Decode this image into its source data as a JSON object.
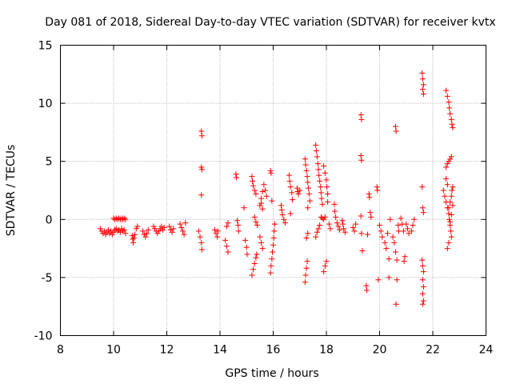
{
  "chart_data": {
    "type": "scatter",
    "title": "Day 081 of 2018, Sidereal Day-to-day VTEC variation (SDTVAR) for receiver kvtx",
    "xlabel": "GPS time / hours",
    "ylabel": "SDTVAR / TECUs",
    "xlim": [
      8,
      24
    ],
    "ylim": [
      -10,
      15
    ],
    "xticks": [
      8,
      10,
      12,
      14,
      16,
      18,
      20,
      22,
      24
    ],
    "yticks": [
      -10,
      -5,
      0,
      5,
      10,
      15
    ],
    "grid": true,
    "marker": "+",
    "colors": {
      "points": "#ff0000",
      "grid": "#a0a0a0",
      "axes": "#000000"
    },
    "series": [
      {
        "name": "SDTVAR",
        "points": [
          [
            9.5,
            -0.8
          ],
          [
            9.55,
            -1.0
          ],
          [
            9.6,
            -1.2
          ],
          [
            9.65,
            -1.0
          ],
          [
            9.7,
            -1.3
          ],
          [
            9.75,
            -1.1
          ],
          [
            9.8,
            -0.9
          ],
          [
            9.85,
            -1.2
          ],
          [
            9.9,
            -1.0
          ],
          [
            9.95,
            -1.3
          ],
          [
            10.0,
            -1.1
          ],
          [
            10.05,
            -0.9
          ],
          [
            10.0,
            0.1
          ],
          [
            10.05,
            0.0
          ],
          [
            10.1,
            0.1
          ],
          [
            10.15,
            0.0
          ],
          [
            10.2,
            0.1
          ],
          [
            10.25,
            0.0
          ],
          [
            10.3,
            0.1
          ],
          [
            10.35,
            0.0
          ],
          [
            10.4,
            0.1
          ],
          [
            10.45,
            0.0
          ],
          [
            10.1,
            -0.8
          ],
          [
            10.15,
            -1.0
          ],
          [
            10.2,
            -0.9
          ],
          [
            10.25,
            -1.1
          ],
          [
            10.3,
            -0.8
          ],
          [
            10.35,
            -1.0
          ],
          [
            10.4,
            -0.9
          ],
          [
            10.45,
            -1.2
          ],
          [
            10.7,
            -1.4
          ],
          [
            10.72,
            -1.7
          ],
          [
            10.74,
            -2.0
          ],
          [
            10.76,
            -1.6
          ],
          [
            10.8,
            -1.3
          ],
          [
            10.85,
            -0.8
          ],
          [
            10.9,
            -0.6
          ],
          [
            11.1,
            -1.0
          ],
          [
            11.15,
            -1.3
          ],
          [
            11.2,
            -1.5
          ],
          [
            11.25,
            -1.2
          ],
          [
            11.3,
            -0.9
          ],
          [
            11.5,
            -0.6
          ],
          [
            11.55,
            -0.8
          ],
          [
            11.6,
            -1.0
          ],
          [
            11.65,
            -1.2
          ],
          [
            11.7,
            -1.0
          ],
          [
            11.75,
            -0.8
          ],
          [
            11.8,
            -0.6
          ],
          [
            11.85,
            -0.9
          ],
          [
            11.9,
            -0.7
          ],
          [
            12.1,
            -0.6
          ],
          [
            12.15,
            -0.9
          ],
          [
            12.2,
            -1.1
          ],
          [
            12.25,
            -0.8
          ],
          [
            12.5,
            -0.4
          ],
          [
            12.55,
            -0.7
          ],
          [
            12.6,
            -1.0
          ],
          [
            12.65,
            -1.3
          ],
          [
            12.7,
            -0.3
          ],
          [
            13.2,
            -1.0
          ],
          [
            13.25,
            -1.5
          ],
          [
            13.3,
            -2.0
          ],
          [
            13.32,
            -2.6
          ],
          [
            13.3,
            7.6
          ],
          [
            13.32,
            7.2
          ],
          [
            13.3,
            4.5
          ],
          [
            13.32,
            4.3
          ],
          [
            13.3,
            2.1
          ],
          [
            13.8,
            -0.9
          ],
          [
            13.85,
            -1.2
          ],
          [
            13.9,
            -1.5
          ],
          [
            13.92,
            -1.0
          ],
          [
            14.2,
            -1.8
          ],
          [
            14.25,
            -2.3
          ],
          [
            14.3,
            -2.8
          ],
          [
            14.25,
            -0.6
          ],
          [
            14.3,
            -0.3
          ],
          [
            14.6,
            3.9
          ],
          [
            14.62,
            3.6
          ],
          [
            14.65,
            -0.1
          ],
          [
            14.68,
            -0.5
          ],
          [
            14.7,
            -1.0
          ],
          [
            14.9,
            1.0
          ],
          [
            14.95,
            -1.8
          ],
          [
            15.0,
            -2.4
          ],
          [
            15.02,
            -3.0
          ],
          [
            15.2,
            3.7
          ],
          [
            15.22,
            3.3
          ],
          [
            15.25,
            2.9
          ],
          [
            15.3,
            2.5
          ],
          [
            15.35,
            2.2
          ],
          [
            15.2,
            -4.8
          ],
          [
            15.25,
            -4.3
          ],
          [
            15.3,
            -3.8
          ],
          [
            15.35,
            -3.3
          ],
          [
            15.38,
            -3.0
          ],
          [
            15.3,
            0.2
          ],
          [
            15.35,
            -0.2
          ],
          [
            15.4,
            -0.5
          ],
          [
            15.5,
            1.2
          ],
          [
            15.55,
            1.8
          ],
          [
            15.6,
            2.4
          ],
          [
            15.65,
            3.0
          ],
          [
            15.7,
            2.5
          ],
          [
            15.75,
            2.0
          ],
          [
            15.55,
            1.4
          ],
          [
            15.6,
            0.9
          ],
          [
            15.5,
            -1.5
          ],
          [
            15.55,
            -2.0
          ],
          [
            15.6,
            -2.5
          ],
          [
            15.9,
            4.2
          ],
          [
            15.92,
            4.0
          ],
          [
            15.95,
            1.6
          ],
          [
            15.9,
            -4.6
          ],
          [
            15.92,
            -4.0
          ],
          [
            15.95,
            -3.4
          ],
          [
            15.97,
            -2.8
          ],
          [
            16.0,
            -2.2
          ],
          [
            16.02,
            -1.6
          ],
          [
            16.04,
            -1.0
          ],
          [
            16.06,
            -0.4
          ],
          [
            16.3,
            1.2
          ],
          [
            16.32,
            0.8
          ],
          [
            16.35,
            0.4
          ],
          [
            16.4,
            0.0
          ],
          [
            16.45,
            -0.3
          ],
          [
            16.6,
            3.8
          ],
          [
            16.62,
            3.3
          ],
          [
            16.65,
            2.8
          ],
          [
            16.7,
            2.3
          ],
          [
            16.72,
            1.7
          ],
          [
            16.65,
            0.5
          ],
          [
            16.9,
            2.7
          ],
          [
            16.92,
            2.4
          ],
          [
            16.95,
            2.2
          ],
          [
            17.0,
            2.5
          ],
          [
            17.2,
            5.2
          ],
          [
            17.22,
            4.7
          ],
          [
            17.25,
            4.2
          ],
          [
            17.28,
            3.7
          ],
          [
            17.3,
            3.2
          ],
          [
            17.32,
            2.7
          ],
          [
            17.35,
            2.2
          ],
          [
            17.38,
            1.6
          ],
          [
            17.2,
            -5.4
          ],
          [
            17.22,
            -4.8
          ],
          [
            17.25,
            -4.2
          ],
          [
            17.28,
            -3.6
          ],
          [
            17.25,
            -1.6
          ],
          [
            17.3,
            -1.2
          ],
          [
            17.3,
            1.0
          ],
          [
            17.6,
            6.4
          ],
          [
            17.62,
            5.9
          ],
          [
            17.65,
            5.4
          ],
          [
            17.68,
            4.8
          ],
          [
            17.7,
            4.3
          ],
          [
            17.72,
            3.8
          ],
          [
            17.75,
            3.3
          ],
          [
            17.78,
            2.8
          ],
          [
            17.8,
            2.3
          ],
          [
            17.82,
            1.8
          ],
          [
            17.85,
            1.3
          ],
          [
            17.8,
            0.2
          ],
          [
            17.85,
            0.1
          ],
          [
            17.9,
            0.0
          ],
          [
            17.95,
            0.2
          ],
          [
            17.6,
            -1.5
          ],
          [
            17.65,
            -1.1
          ],
          [
            17.7,
            -0.8
          ],
          [
            17.75,
            -0.5
          ],
          [
            17.9,
            -4.5
          ],
          [
            17.95,
            -4.0
          ],
          [
            18.0,
            -3.6
          ],
          [
            17.9,
            4.6
          ],
          [
            17.95,
            4.0
          ],
          [
            18.0,
            3.4
          ],
          [
            18.02,
            2.8
          ],
          [
            18.05,
            2.2
          ],
          [
            18.05,
            1.5
          ],
          [
            18.1,
            -0.4
          ],
          [
            18.15,
            -0.8
          ],
          [
            18.3,
            1.3
          ],
          [
            18.32,
            0.7
          ],
          [
            18.35,
            0.2
          ],
          [
            18.4,
            -0.3
          ],
          [
            18.45,
            -0.6
          ],
          [
            18.5,
            -0.9
          ],
          [
            18.6,
            -0.1
          ],
          [
            18.62,
            -0.4
          ],
          [
            18.65,
            -0.8
          ],
          [
            18.7,
            -1.1
          ],
          [
            19.0,
            -0.7
          ],
          [
            19.05,
            -1.0
          ],
          [
            19.1,
            -0.4
          ],
          [
            19.3,
            9.0
          ],
          [
            19.32,
            8.6
          ],
          [
            19.3,
            5.5
          ],
          [
            19.32,
            5.1
          ],
          [
            19.3,
            0.3
          ],
          [
            19.32,
            -1.2
          ],
          [
            19.35,
            -2.7
          ],
          [
            19.5,
            -5.7
          ],
          [
            19.52,
            -6.1
          ],
          [
            19.55,
            -1.3
          ],
          [
            19.6,
            2.2
          ],
          [
            19.62,
            1.9
          ],
          [
            19.65,
            0.6
          ],
          [
            19.68,
            0.2
          ],
          [
            19.9,
            2.8
          ],
          [
            19.92,
            2.5
          ],
          [
            19.95,
            -5.2
          ],
          [
            20.0,
            -0.5
          ],
          [
            20.05,
            -1.0
          ],
          [
            20.1,
            -1.5
          ],
          [
            20.2,
            -2.0
          ],
          [
            20.25,
            -2.5
          ],
          [
            20.3,
            -1.2
          ],
          [
            20.35,
            -3.4
          ],
          [
            20.35,
            -5.0
          ],
          [
            20.4,
            0.0
          ],
          [
            20.5,
            -1.5
          ],
          [
            20.55,
            -2.0
          ],
          [
            20.6,
            -2.8
          ],
          [
            20.65,
            -3.5
          ],
          [
            20.65,
            -5.2
          ],
          [
            20.6,
            8.0
          ],
          [
            20.62,
            7.6
          ],
          [
            20.62,
            -7.3
          ],
          [
            20.7,
            -0.5
          ],
          [
            20.72,
            -1.0
          ],
          [
            20.8,
            0.1
          ],
          [
            20.85,
            -0.4
          ],
          [
            20.9,
            -1.0
          ],
          [
            20.92,
            -3.6
          ],
          [
            20.95,
            -3.2
          ],
          [
            21.0,
            -0.4
          ],
          [
            21.05,
            -0.8
          ],
          [
            21.1,
            -1.2
          ],
          [
            21.2,
            -1.0
          ],
          [
            21.25,
            -0.5
          ],
          [
            21.3,
            0.0
          ],
          [
            21.6,
            12.6
          ],
          [
            21.62,
            12.1
          ],
          [
            21.65,
            11.6
          ],
          [
            21.62,
            11.2
          ],
          [
            21.65,
            10.8
          ],
          [
            21.6,
            2.8
          ],
          [
            21.62,
            1.0
          ],
          [
            21.65,
            0.6
          ],
          [
            21.6,
            -3.5
          ],
          [
            21.62,
            -4.0
          ],
          [
            21.65,
            -4.5
          ],
          [
            21.62,
            -5.2
          ],
          [
            21.65,
            -5.8
          ],
          [
            21.62,
            -6.4
          ],
          [
            21.65,
            -7.0
          ],
          [
            21.62,
            -7.3
          ],
          [
            22.5,
            11.1
          ],
          [
            22.55,
            10.6
          ],
          [
            22.6,
            10.1
          ],
          [
            22.62,
            9.6
          ],
          [
            22.65,
            9.1
          ],
          [
            22.7,
            8.6
          ],
          [
            22.72,
            8.2
          ],
          [
            22.75,
            7.9
          ],
          [
            22.5,
            4.5
          ],
          [
            22.55,
            4.8
          ],
          [
            22.6,
            5.0
          ],
          [
            22.65,
            5.2
          ],
          [
            22.7,
            5.4
          ],
          [
            22.5,
            3.5
          ],
          [
            22.55,
            3.0
          ],
          [
            22.4,
            2.5
          ],
          [
            22.45,
            2.0
          ],
          [
            22.5,
            1.5
          ],
          [
            22.55,
            1.0
          ],
          [
            22.6,
            0.5
          ],
          [
            22.62,
            0.0
          ],
          [
            22.65,
            -0.5
          ],
          [
            22.68,
            -1.0
          ],
          [
            22.7,
            -1.5
          ],
          [
            22.6,
            -2.0
          ],
          [
            22.55,
            -2.5
          ],
          [
            22.6,
            1.0
          ],
          [
            22.65,
            1.5
          ],
          [
            22.7,
            2.0
          ],
          [
            22.72,
            2.5
          ],
          [
            22.75,
            2.8
          ],
          [
            22.7,
            0.4
          ],
          [
            22.65,
            -0.2
          ],
          [
            22.75,
            1.2
          ]
        ]
      }
    ]
  }
}
